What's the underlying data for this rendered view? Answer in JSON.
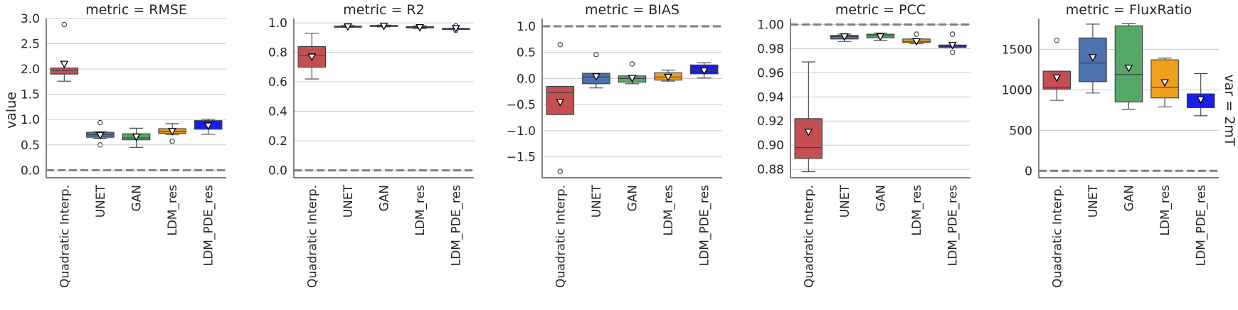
{
  "chart_data": {
    "type": "box",
    "categories": [
      "Quadratic Interp.",
      "UNET",
      "GAN",
      "LDM_res",
      "LDM_PDE_res"
    ],
    "category_colors": [
      "#c44e52",
      "#4c72b0",
      "#55a868",
      "#f0a01e",
      "#1a1aff"
    ],
    "ylabel": "value",
    "row_label": "var = 2mT",
    "panels": [
      {
        "title": "metric = RMSE",
        "ylim": [
          -0.15,
          3.0
        ],
        "yticks": [
          0.0,
          0.5,
          1.0,
          1.5,
          2.0,
          2.5,
          3.0
        ],
        "tick_labels": [
          "0.0",
          "0.5",
          "1.0",
          "1.5",
          "2.0",
          "2.5",
          "3.0"
        ],
        "reference_line": 0.0,
        "boxes": [
          {
            "whisker_low": 1.76,
            "q1": 1.9,
            "median": 1.97,
            "q3": 2.02,
            "whisker_high": 2.02,
            "mean": 2.1,
            "outliers": [
              2.88
            ]
          },
          {
            "whisker_low": 0.63,
            "q1": 0.65,
            "median": 0.7,
            "q3": 0.75,
            "whisker_high": 0.76,
            "mean": 0.69,
            "outliers": [
              0.94,
              0.5
            ]
          },
          {
            "whisker_low": 0.45,
            "q1": 0.6,
            "median": 0.64,
            "q3": 0.72,
            "whisker_high": 0.83,
            "mean": 0.66,
            "outliers": []
          },
          {
            "whisker_low": 0.7,
            "q1": 0.73,
            "median": 0.77,
            "q3": 0.82,
            "whisker_high": 0.92,
            "mean": 0.77,
            "outliers": [
              0.57
            ]
          },
          {
            "whisker_low": 0.71,
            "q1": 0.81,
            "median": 0.88,
            "q3": 0.98,
            "whisker_high": 1.01,
            "mean": 0.88,
            "outliers": []
          }
        ]
      },
      {
        "title": "metric = R2",
        "ylim": [
          -0.05,
          1.03
        ],
        "yticks": [
          0.0,
          0.2,
          0.4,
          0.6,
          0.8,
          1.0
        ],
        "tick_labels": [
          "0.0",
          "0.2",
          "0.4",
          "0.6",
          "0.8",
          "1.0"
        ],
        "reference_line": 0.0,
        "boxes": [
          {
            "whisker_low": 0.62,
            "q1": 0.7,
            "median": 0.78,
            "q3": 0.84,
            "whisker_high": 0.93,
            "mean": 0.77,
            "outliers": []
          },
          {
            "whisker_low": 0.97,
            "q1": 0.972,
            "median": 0.975,
            "q3": 0.978,
            "whisker_high": 0.983,
            "mean": 0.975,
            "outliers": []
          },
          {
            "whisker_low": 0.973,
            "q1": 0.976,
            "median": 0.979,
            "q3": 0.983,
            "whisker_high": 0.985,
            "mean": 0.979,
            "outliers": []
          },
          {
            "whisker_low": 0.962,
            "q1": 0.966,
            "median": 0.97,
            "q3": 0.975,
            "whisker_high": 0.98,
            "mean": 0.97,
            "outliers": []
          },
          {
            "whisker_low": 0.958,
            "q1": 0.96,
            "median": 0.962,
            "q3": 0.963,
            "whisker_high": 0.964,
            "mean": 0.964,
            "outliers": [
              0.98,
              0.95
            ]
          }
        ]
      },
      {
        "title": "metric = BIAS",
        "ylim": [
          -1.9,
          1.15
        ],
        "yticks": [
          -1.5,
          -1.0,
          -0.5,
          0.0,
          0.5,
          1.0
        ],
        "tick_labels": [
          "−1.5",
          "−1.0",
          "−0.5",
          "0.0",
          "0.5",
          "1.0"
        ],
        "reference_line": 1.0,
        "boxes": [
          {
            "whisker_low": -0.69,
            "q1": -0.69,
            "median": -0.27,
            "q3": -0.15,
            "whisker_high": -0.15,
            "mean": -0.45,
            "outliers": [
              0.65,
              -1.78
            ]
          },
          {
            "whisker_low": -0.18,
            "q1": -0.1,
            "median": 0.03,
            "q3": 0.1,
            "whisker_high": 0.1,
            "mean": 0.04,
            "outliers": [
              0.46
            ]
          },
          {
            "whisker_low": -0.1,
            "q1": -0.07,
            "median": 0.0,
            "q3": 0.05,
            "whisker_high": 0.05,
            "mean": 0.01,
            "outliers": [
              0.28
            ]
          },
          {
            "whisker_low": -0.05,
            "q1": -0.03,
            "median": 0.03,
            "q3": 0.11,
            "whisker_high": 0.16,
            "mean": 0.03,
            "outliers": []
          },
          {
            "whisker_low": 0.01,
            "q1": 0.09,
            "median": 0.15,
            "q3": 0.26,
            "whisker_high": 0.3,
            "mean": 0.15,
            "outliers": []
          }
        ]
      },
      {
        "title": "metric = PCC",
        "ylim": [
          0.873,
          1.005
        ],
        "yticks": [
          0.88,
          0.9,
          0.92,
          0.94,
          0.96,
          0.98,
          1.0
        ],
        "tick_labels": [
          "0.88",
          "0.90",
          "0.92",
          "0.94",
          "0.96",
          "0.98",
          "1.00"
        ],
        "reference_line": 1.0,
        "boxes": [
          {
            "whisker_low": 0.878,
            "q1": 0.889,
            "median": 0.898,
            "q3": 0.922,
            "whisker_high": 0.969,
            "mean": 0.911,
            "outliers": []
          },
          {
            "whisker_low": 0.986,
            "q1": 0.988,
            "median": 0.99,
            "q3": 0.991,
            "whisker_high": 0.992,
            "mean": 0.99,
            "outliers": []
          },
          {
            "whisker_low": 0.987,
            "q1": 0.989,
            "median": 0.991,
            "q3": 0.992,
            "whisker_high": 0.993,
            "mean": 0.99,
            "outliers": []
          },
          {
            "whisker_low": 0.984,
            "q1": 0.985,
            "median": 0.986,
            "q3": 0.988,
            "whisker_high": 0.988,
            "mean": 0.986,
            "outliers": [
              0.992
            ]
          },
          {
            "whisker_low": 0.981,
            "q1": 0.981,
            "median": 0.982,
            "q3": 0.983,
            "whisker_high": 0.983,
            "mean": 0.983,
            "outliers": [
              0.992,
              0.977
            ]
          }
        ]
      },
      {
        "title": "metric = FluxRatio",
        "ylim": [
          -85,
          1880
        ],
        "yticks": [
          0,
          500,
          1000,
          1500
        ],
        "tick_labels": [
          "0",
          "500",
          "1000",
          "1500"
        ],
        "reference_line": 0,
        "boxes": [
          {
            "whisker_low": 870,
            "q1": 1010,
            "median": 1030,
            "q3": 1230,
            "whisker_high": 1230,
            "mean": 1150,
            "outliers": [
              1610
            ]
          },
          {
            "whisker_low": 960,
            "q1": 1100,
            "median": 1330,
            "q3": 1640,
            "whisker_high": 1810,
            "mean": 1400,
            "outliers": []
          },
          {
            "whisker_low": 760,
            "q1": 850,
            "median": 1190,
            "q3": 1790,
            "whisker_high": 1815,
            "mean": 1270,
            "outliers": []
          },
          {
            "whisker_low": 790,
            "q1": 900,
            "median": 1030,
            "q3": 1370,
            "whisker_high": 1390,
            "mean": 1090,
            "outliers": []
          },
          {
            "whisker_low": 680,
            "q1": 780,
            "median": 850,
            "q3": 950,
            "whisker_high": 1200,
            "mean": 880,
            "outliers": []
          }
        ]
      }
    ]
  }
}
